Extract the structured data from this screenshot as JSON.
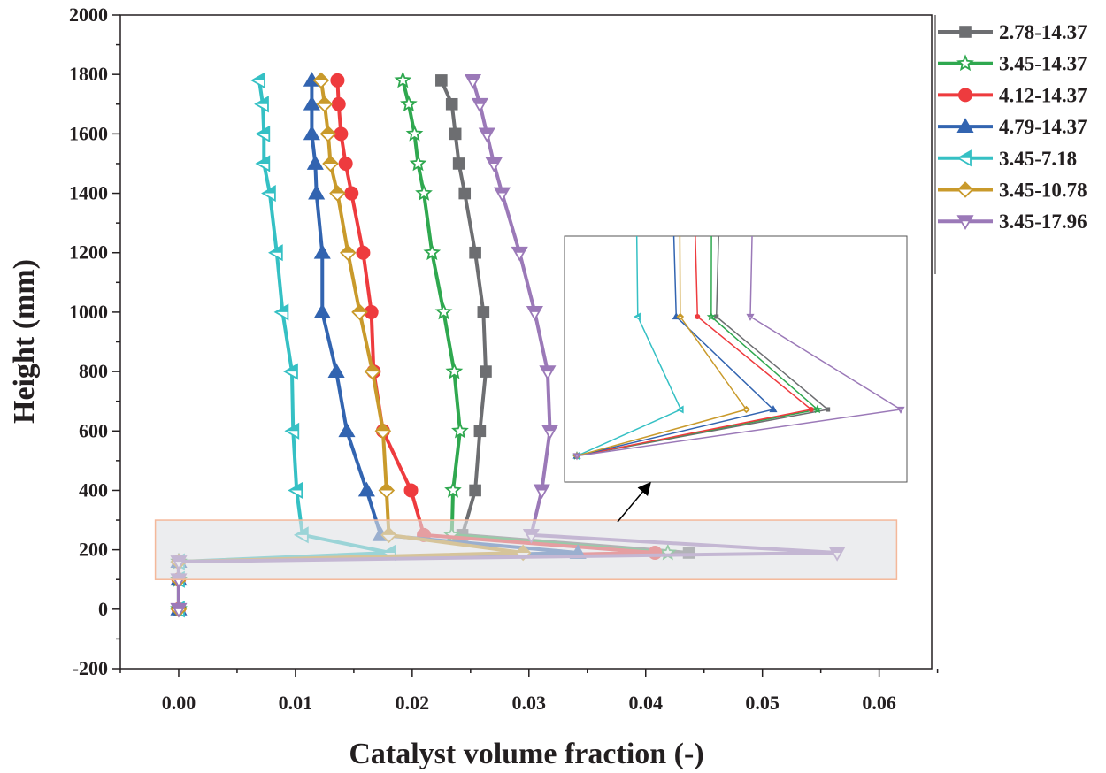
{
  "chart_data": {
    "type": "line",
    "title": "",
    "xlabel": "Catalyst volume fraction (-)",
    "ylabel": "Height (mm)",
    "xlim": [
      -0.005,
      0.0645
    ],
    "ylim": [
      -200,
      2000
    ],
    "xticks": [
      "0.00",
      "0.01",
      "0.02",
      "0.03",
      "0.04",
      "0.05",
      "0.06"
    ],
    "xtick_values": [
      0,
      0.01,
      0.02,
      0.03,
      0.04,
      0.05,
      0.06
    ],
    "yticks": [
      "-200",
      "0",
      "200",
      "400",
      "600",
      "800",
      "1000",
      "1200",
      "1400",
      "1600",
      "1800",
      "2000"
    ],
    "ytick_values": [
      -200,
      0,
      200,
      400,
      600,
      800,
      1000,
      1200,
      1400,
      1600,
      1800,
      2000
    ],
    "legend_position": "right-outside-top",
    "heights": [
      0,
      100,
      160,
      190,
      250,
      400,
      600,
      800,
      1000,
      1200,
      1400,
      1500,
      1600,
      1700,
      1780
    ],
    "series": [
      {
        "name": "2.78-14.37",
        "color": "#6d6e71",
        "marker": "square",
        "values": [
          0,
          0,
          0,
          0.0437,
          0.0243,
          0.0254,
          0.0258,
          0.0263,
          0.0261,
          0.0254,
          0.0245,
          0.024,
          0.0237,
          0.0234,
          0.0225
        ]
      },
      {
        "name": "3.45-14.37",
        "color": "#2fa84f",
        "marker": "star",
        "values": [
          0,
          0,
          0,
          0.0419,
          0.0234,
          0.0235,
          0.0241,
          0.0236,
          0.0227,
          0.0217,
          0.021,
          0.0205,
          0.0202,
          0.0197,
          0.0192
        ]
      },
      {
        "name": "4.12-14.37",
        "color": "#ee3b3e",
        "marker": "circle",
        "values": [
          0,
          0,
          0,
          0.0408,
          0.021,
          0.0199,
          0.0175,
          0.0167,
          0.0165,
          0.0158,
          0.0148,
          0.0143,
          0.0139,
          0.0137,
          0.0136
        ]
      },
      {
        "name": "4.79-14.37",
        "color": "#3264b0",
        "marker": "triangle-up",
        "values": [
          0,
          0,
          0,
          0.0342,
          0.0173,
          0.0161,
          0.0144,
          0.0135,
          0.0123,
          0.0123,
          0.0118,
          0.0117,
          0.0114,
          0.0114,
          0.0114
        ]
      },
      {
        "name": "3.45-7.18",
        "color": "#35c0c4",
        "marker": "triangle-left",
        "values": [
          0,
          0,
          0,
          0.0181,
          0.0106,
          0.0101,
          0.0098,
          0.0097,
          0.0089,
          0.0084,
          0.0078,
          0.0073,
          0.0073,
          0.0072,
          0.0069
        ]
      },
      {
        "name": "3.45-10.78",
        "color": "#c99a2b",
        "marker": "diamond",
        "values": [
          0,
          0,
          0,
          0.0295,
          0.018,
          0.0178,
          0.0175,
          0.0166,
          0.0155,
          0.0145,
          0.0136,
          0.013,
          0.0128,
          0.0125,
          0.0122
        ]
      },
      {
        "name": "3.45-17.96",
        "color": "#9b79b8",
        "marker": "triangle-down",
        "values": [
          0,
          0,
          0,
          0.0564,
          0.0302,
          0.0311,
          0.0318,
          0.0316,
          0.0305,
          0.0292,
          0.0277,
          0.027,
          0.0264,
          0.0258,
          0.0252
        ]
      }
    ],
    "highlight_region": {
      "x": [
        -0.002,
        0.0615
      ],
      "y": [
        100,
        300
      ]
    },
    "inset": {
      "description_of_range_x": [
        0,
        0.0564
      ],
      "y_range": [
        160,
        296
      ]
    }
  }
}
